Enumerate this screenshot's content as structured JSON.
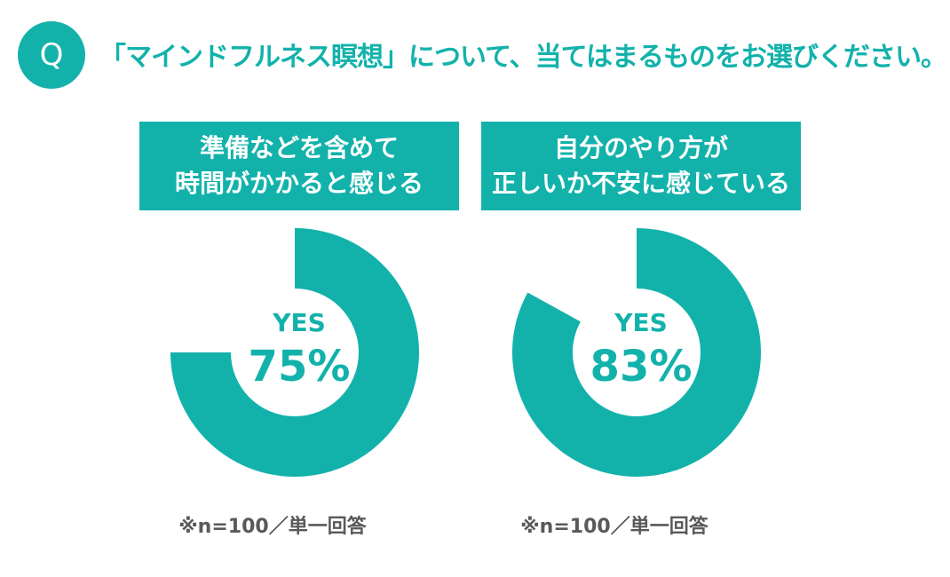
{
  "header": {
    "q_label": "Q",
    "question": "「マインドフルネス瞑想」について、当てはまるものをお選びください。"
  },
  "colors": {
    "accent": "#12b2ab",
    "note": "#595959"
  },
  "chart_data": [
    {
      "type": "pie",
      "style": "donut",
      "title_lines": [
        "準備などを含めて",
        "時間がかかると感じる"
      ],
      "center_label": "YES",
      "center_value_text": "75%",
      "values": [
        75
      ],
      "note": "※n=100／単一回答"
    },
    {
      "type": "pie",
      "style": "donut",
      "title_lines": [
        "自分のやり方が",
        "正しいか不安に感じている"
      ],
      "center_label": "YES",
      "center_value_text": "83%",
      "values": [
        83
      ],
      "note": "※n=100／単一回答"
    }
  ]
}
